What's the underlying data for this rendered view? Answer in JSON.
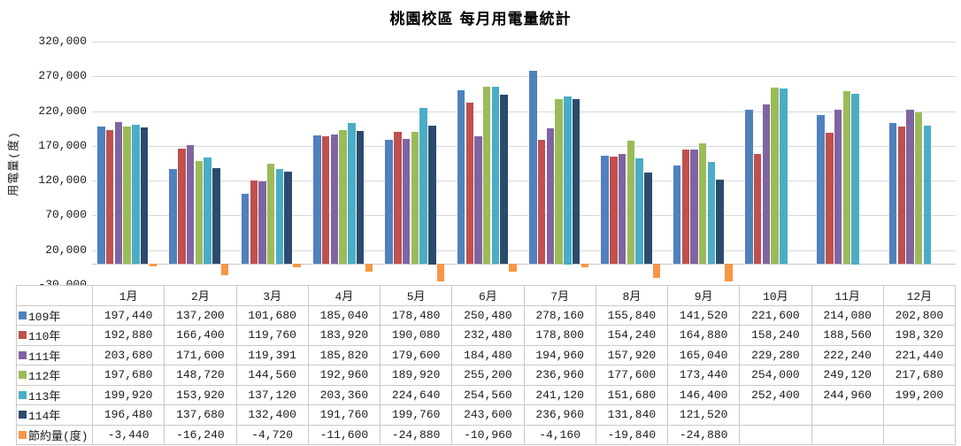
{
  "chart_data": {
    "type": "bar",
    "title": "桃園校區 每月用電量統計",
    "ylabel": "用電量(度)",
    "xlabel": "",
    "ylim": [
      -30000,
      320000
    ],
    "yticks": [
      320000,
      270000,
      220000,
      170000,
      120000,
      70000,
      20000,
      -30000
    ],
    "grid": true,
    "grid_color": "#D9D9D9",
    "legend_position": "data-table-left-column",
    "categories": [
      "1月",
      "2月",
      "3月",
      "4月",
      "5月",
      "6月",
      "7月",
      "8月",
      "9月",
      "10月",
      "11月",
      "12月"
    ],
    "series": [
      {
        "name": "109年",
        "color": "#4F81BD",
        "values": [
          197440,
          137200,
          101680,
          185040,
          178480,
          250480,
          278160,
          155840,
          141520,
          221600,
          214080,
          202800
        ]
      },
      {
        "name": "110年",
        "color": "#C0504D",
        "values": [
          192880,
          166400,
          119760,
          183920,
          190080,
          232480,
          178800,
          154240,
          164880,
          158240,
          188560,
          198320
        ]
      },
      {
        "name": "111年",
        "color": "#8064A2",
        "values": [
          203680,
          171600,
          119391,
          185820,
          179600,
          184480,
          194960,
          157920,
          165040,
          229280,
          222240,
          221440
        ]
      },
      {
        "name": "112年",
        "color": "#9BBB59",
        "values": [
          197680,
          148720,
          144560,
          192960,
          189920,
          255200,
          236960,
          177600,
          173440,
          254000,
          249120,
          217680
        ]
      },
      {
        "name": "113年",
        "color": "#4BACC6",
        "values": [
          199920,
          153920,
          137120,
          203360,
          224640,
          254560,
          241120,
          151680,
          146400,
          252400,
          244960,
          199200
        ]
      },
      {
        "name": "114年",
        "color": "#2B4B6C",
        "values": [
          196480,
          137680,
          132400,
          191760,
          199760,
          243600,
          236960,
          131840,
          121520,
          null,
          null,
          null
        ]
      },
      {
        "name": "節約量(度)",
        "color": "#F79646",
        "values": [
          -3440,
          -16240,
          -4720,
          -11600,
          -24880,
          -10960,
          -4160,
          -19840,
          -24880,
          null,
          null,
          null
        ]
      }
    ]
  }
}
